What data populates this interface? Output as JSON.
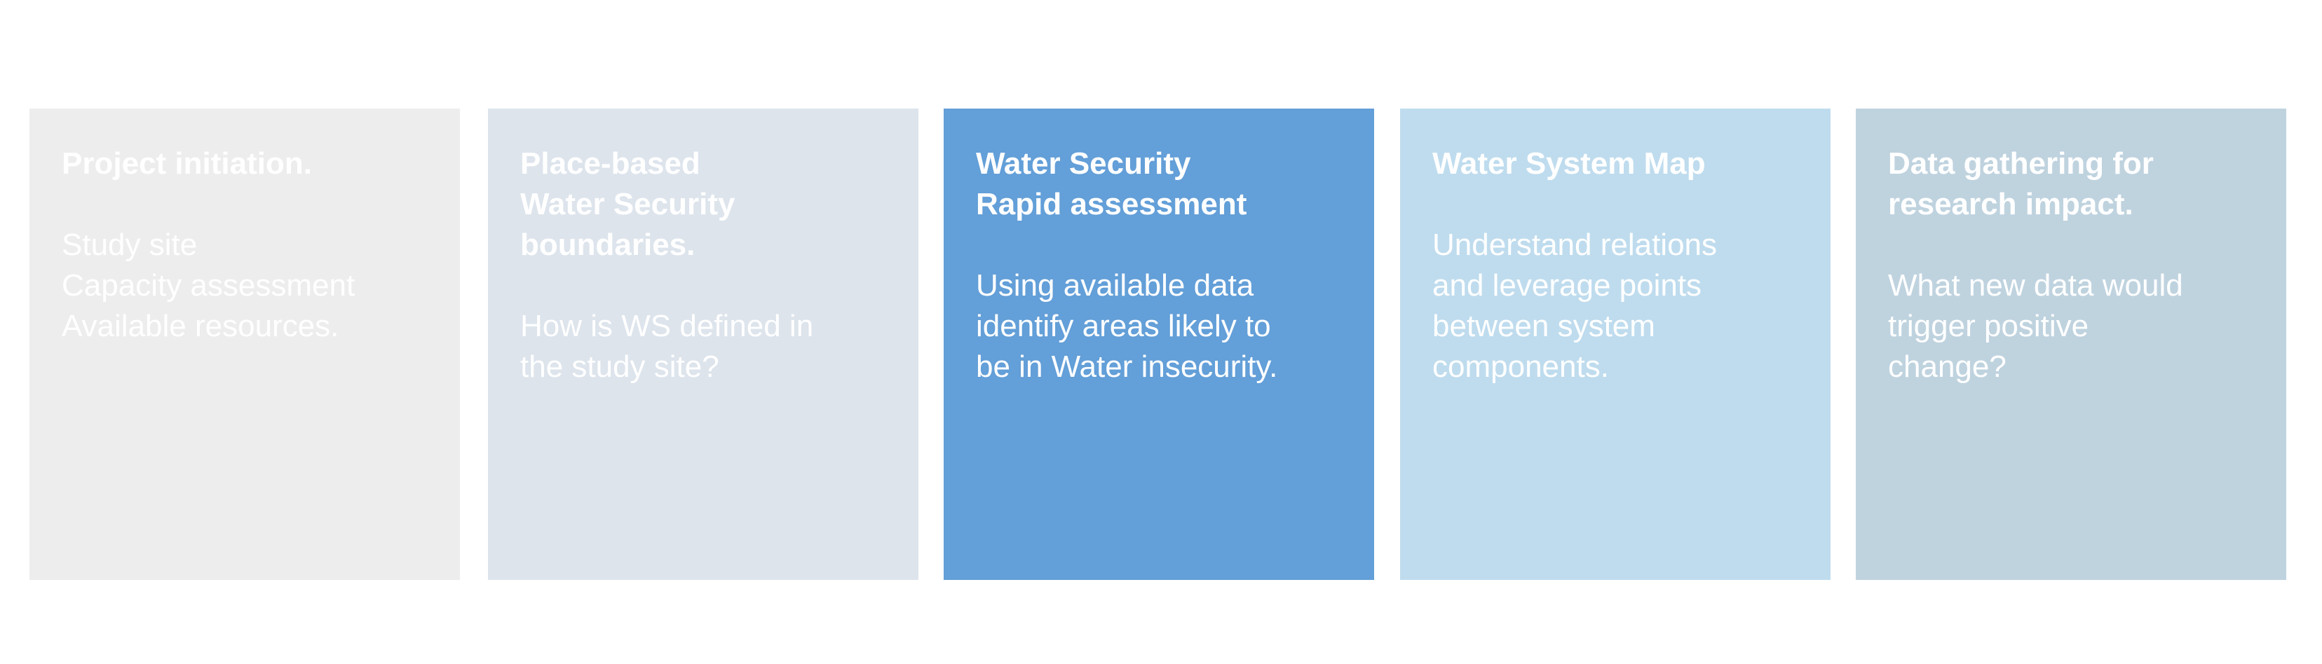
{
  "stages": [
    {
      "title": "Project initiation.",
      "body": "Study site\nCapacity assessment\nAvailable resources.",
      "color": "#ededed"
    },
    {
      "title": "Place-based\nWater Security\nboundaries.",
      "body": "How is WS defined in\nthe study site?",
      "color": "#dde4ec"
    },
    {
      "title": "Water Security\nRapid assessment",
      "body": "Using available data\nidentify areas likely to\nbe in Water insecurity.",
      "color": "#639fd8"
    },
    {
      "title": "Water System Map",
      "body": "Understand relations\nand leverage points\nbetween system\ncomponents.",
      "color": "#bfdcee"
    },
    {
      "title": "Data gathering for\nresearch impact.",
      "body": "What new data would\ntrigger positive\nchange?",
      "color": "#bfd3df"
    }
  ]
}
